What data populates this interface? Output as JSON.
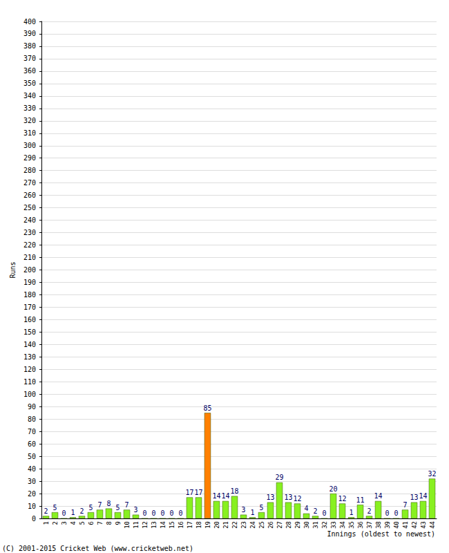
{
  "chart_data": {
    "type": "bar",
    "x_label": "Innings (oldest to newest)",
    "y_label": "Runs",
    "annotations": [
      "(C) 2001-2015 Cricket Web (www.cricketweb.net)"
    ],
    "categories": [
      "1",
      "2",
      "3",
      "4",
      "5",
      "6",
      "7",
      "8",
      "9",
      "10",
      "11",
      "12",
      "13",
      "14",
      "15",
      "16",
      "17",
      "18",
      "19",
      "20",
      "21",
      "22",
      "23",
      "24",
      "25",
      "26",
      "27",
      "28",
      "29",
      "30",
      "31",
      "32",
      "33",
      "34",
      "35",
      "36",
      "37",
      "38",
      "39",
      "40",
      "41",
      "42",
      "43",
      "44"
    ],
    "values": [
      2,
      5,
      0,
      1,
      2,
      5,
      7,
      8,
      5,
      7,
      3,
      0,
      0,
      0,
      0,
      0,
      17,
      17,
      85,
      14,
      14,
      18,
      3,
      1,
      5,
      13,
      29,
      13,
      12,
      4,
      2,
      0,
      20,
      12,
      1,
      11,
      2,
      14,
      0,
      0,
      7,
      13,
      14,
      32
    ],
    "colors": [
      "#88f020",
      "#88f020",
      "#88f020",
      "#88f020",
      "#88f020",
      "#88f020",
      "#88f020",
      "#88f020",
      "#88f020",
      "#88f020",
      "#88f020",
      "#88f020",
      "#88f020",
      "#88f020",
      "#88f020",
      "#88f020",
      "#88f020",
      "#88f020",
      "#ff8000",
      "#88f020",
      "#88f020",
      "#88f020",
      "#88f020",
      "#88f020",
      "#88f020",
      "#88f020",
      "#88f020",
      "#88f020",
      "#88f020",
      "#88f020",
      "#88f020",
      "#88f020",
      "#88f020",
      "#88f020",
      "#88f020",
      "#88f020",
      "#88f020",
      "#88f020",
      "#88f020",
      "#88f020",
      "#88f020",
      "#88f020",
      "#88f020",
      "#88f020"
    ],
    "ylim": [
      0,
      400
    ],
    "yticks": [
      0,
      10,
      20,
      30,
      40,
      50,
      60,
      70,
      80,
      90,
      100,
      110,
      120,
      130,
      140,
      150,
      160,
      170,
      180,
      190,
      200,
      210,
      220,
      230,
      240,
      250,
      260,
      270,
      280,
      290,
      300,
      310,
      320,
      330,
      340,
      350,
      360,
      370,
      380,
      390,
      400
    ],
    "grid": true,
    "data_labels": true
  }
}
